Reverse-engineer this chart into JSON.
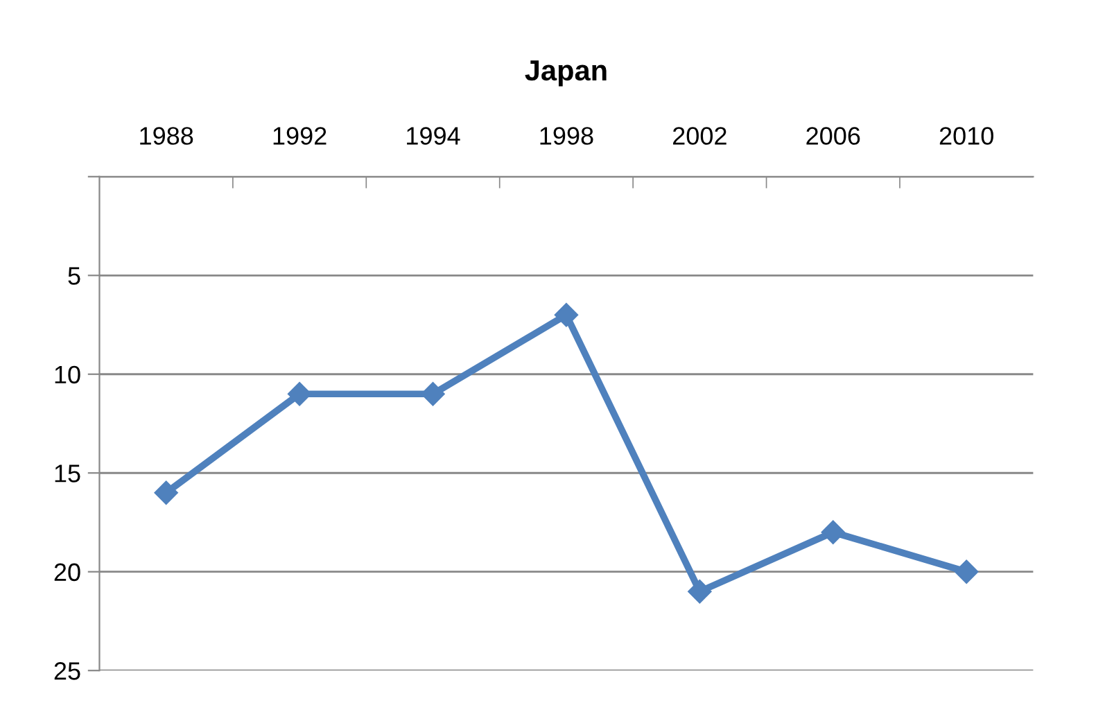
{
  "chart_data": {
    "type": "line",
    "title": "Japan",
    "categories": [
      "1988",
      "1992",
      "1994",
      "1998",
      "2002",
      "2006",
      "2010"
    ],
    "series": [
      {
        "color": "#4f81bd",
        "values": [
          16,
          11,
          11,
          7,
          21,
          18,
          20
        ]
      }
    ],
    "ylim": [
      25,
      0
    ],
    "yticks": [
      {
        "value": 0,
        "label": null
      },
      5,
      10,
      15,
      20,
      25
    ],
    "grid": "y",
    "marker": "diamond",
    "line_style": "solid"
  }
}
